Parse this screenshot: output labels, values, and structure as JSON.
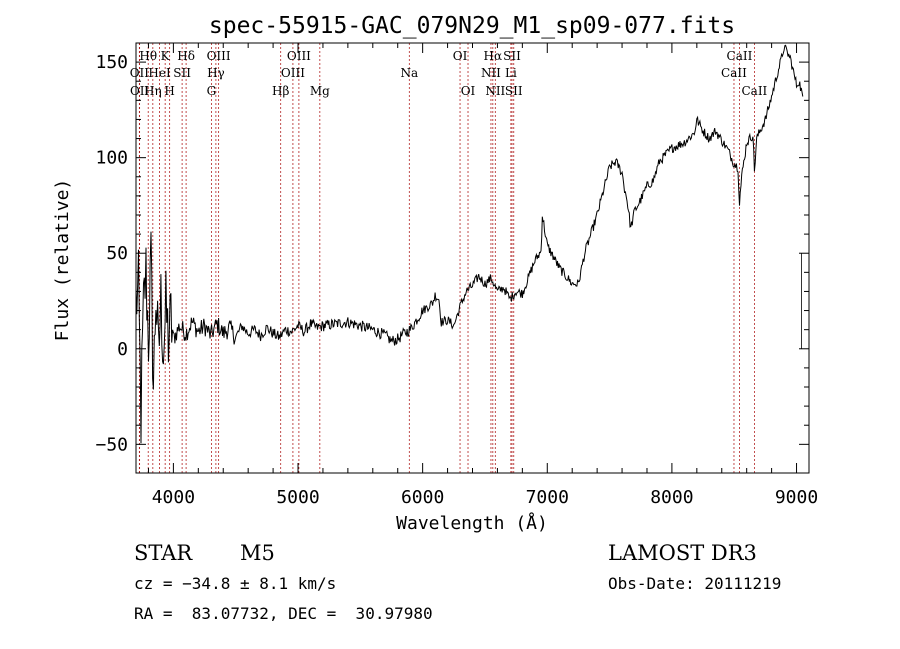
{
  "chart_data": {
    "type": "line",
    "title": "spec-55915-GAC_079N29_M1_sp09-077.fits",
    "xlabel": "Wavelength (Å)",
    "ylabel": "Flux (relative)",
    "xlim": [
      3700,
      9100
    ],
    "ylim": [
      -65,
      160
    ],
    "x_ticks": [
      4000,
      5000,
      6000,
      7000,
      8000,
      9000
    ],
    "x_tick_labels": [
      "4000",
      "5000",
      "6000",
      "7000",
      "8000",
      "9000"
    ],
    "y_ticks": [
      -50,
      0,
      50,
      100,
      150
    ],
    "y_tick_labels": [
      "−50",
      "0",
      "50",
      "100",
      "150"
    ],
    "series": [
      {
        "name": "flux",
        "points": [
          [
            3700,
            25
          ],
          [
            3720,
            30
          ],
          [
            3740,
            -35
          ],
          [
            3760,
            20
          ],
          [
            3780,
            40
          ],
          [
            3800,
            5
          ],
          [
            3820,
            45
          ],
          [
            3840,
            -20
          ],
          [
            3860,
            30
          ],
          [
            3880,
            -5
          ],
          [
            3900,
            25
          ],
          [
            3920,
            0
          ],
          [
            3940,
            20
          ],
          [
            3960,
            5
          ],
          [
            3980,
            15
          ],
          [
            4000,
            5
          ],
          [
            4050,
            12
          ],
          [
            4100,
            8
          ],
          [
            4150,
            14
          ],
          [
            4200,
            9
          ],
          [
            4250,
            12
          ],
          [
            4300,
            7
          ],
          [
            4350,
            13
          ],
          [
            4400,
            8
          ],
          [
            4450,
            11
          ],
          [
            4500,
            6
          ],
          [
            4550,
            12
          ],
          [
            4600,
            8
          ],
          [
            4650,
            10
          ],
          [
            4700,
            7
          ],
          [
            4750,
            11
          ],
          [
            4800,
            8
          ],
          [
            4850,
            6
          ],
          [
            4900,
            10
          ],
          [
            4950,
            9
          ],
          [
            5000,
            12
          ],
          [
            5050,
            9
          ],
          [
            5100,
            13
          ],
          [
            5150,
            11
          ],
          [
            5200,
            12
          ],
          [
            5300,
            13
          ],
          [
            5400,
            14
          ],
          [
            5500,
            12
          ],
          [
            5600,
            10
          ],
          [
            5700,
            7
          ],
          [
            5750,
            4
          ],
          [
            5800,
            5
          ],
          [
            5850,
            8
          ],
          [
            5900,
            10
          ],
          [
            6000,
            20
          ],
          [
            6080,
            24
          ],
          [
            6100,
            28
          ],
          [
            6130,
            26
          ],
          [
            6150,
            14
          ],
          [
            6200,
            15
          ],
          [
            6250,
            12
          ],
          [
            6300,
            22
          ],
          [
            6350,
            30
          ],
          [
            6400,
            33
          ],
          [
            6450,
            38
          ],
          [
            6500,
            34
          ],
          [
            6550,
            37
          ],
          [
            6600,
            30
          ],
          [
            6650,
            32
          ],
          [
            6700,
            26
          ],
          [
            6750,
            30
          ],
          [
            6800,
            29
          ],
          [
            6900,
            46
          ],
          [
            6950,
            51
          ],
          [
            6960,
            70
          ],
          [
            6990,
            58
          ],
          [
            7000,
            54
          ],
          [
            7100,
            42
          ],
          [
            7200,
            34
          ],
          [
            7250,
            34
          ],
          [
            7300,
            50
          ],
          [
            7400,
            70
          ],
          [
            7500,
            95
          ],
          [
            7550,
            98
          ],
          [
            7600,
            92
          ],
          [
            7620,
            84
          ],
          [
            7640,
            78
          ],
          [
            7670,
            63
          ],
          [
            7700,
            72
          ],
          [
            7750,
            78
          ],
          [
            7800,
            85
          ],
          [
            7850,
            88
          ],
          [
            7900,
            98
          ],
          [
            8000,
            105
          ],
          [
            8100,
            108
          ],
          [
            8180,
            113
          ],
          [
            8200,
            120
          ],
          [
            8250,
            114
          ],
          [
            8300,
            110
          ],
          [
            8350,
            114
          ],
          [
            8400,
            109
          ],
          [
            8450,
            104
          ],
          [
            8498,
            97
          ],
          [
            8530,
            95
          ],
          [
            8542,
            77
          ],
          [
            8560,
            90
          ],
          [
            8600,
            108
          ],
          [
            8650,
            112
          ],
          [
            8662,
            93
          ],
          [
            8680,
            110
          ],
          [
            8750,
            120
          ],
          [
            8800,
            132
          ],
          [
            8850,
            145
          ],
          [
            8880,
            152
          ],
          [
            8900,
            158
          ],
          [
            8950,
            152
          ],
          [
            9000,
            138
          ],
          [
            9020,
            140
          ],
          [
            9050,
            132
          ]
        ]
      }
    ],
    "lines": [
      {
        "label": "Hθ",
        "x": 3798,
        "row": 0
      },
      {
        "label": "OII",
        "x": 3727,
        "row": 1
      },
      {
        "label": "OII",
        "x": 3729,
        "row": 2
      },
      {
        "label": "Hη",
        "x": 3835,
        "row": 2
      },
      {
        "label": "HeI",
        "x": 3889,
        "row": 1
      },
      {
        "label": "H",
        "x": 3970,
        "row": 2
      },
      {
        "label": "K",
        "x": 3934,
        "row": 0
      },
      {
        "label": "SII",
        "x": 4070,
        "row": 1
      },
      {
        "label": "Hδ",
        "x": 4102,
        "row": 0
      },
      {
        "label": "G",
        "x": 4305,
        "row": 2
      },
      {
        "label": "Hγ",
        "x": 4341,
        "row": 1
      },
      {
        "label": "OIII",
        "x": 4363,
        "row": 0
      },
      {
        "label": "Hβ",
        "x": 4861,
        "row": 2
      },
      {
        "label": "OIII",
        "x": 4959,
        "row": 1
      },
      {
        "label": "OIII",
        "x": 5007,
        "row": 0
      },
      {
        "label": "Mg",
        "x": 5175,
        "row": 2
      },
      {
        "label": "Na",
        "x": 5893,
        "row": 1
      },
      {
        "label": "OI",
        "x": 6300,
        "row": 0
      },
      {
        "label": "OI",
        "x": 6364,
        "row": 2
      },
      {
        "label": "NII",
        "x": 6548,
        "row": 1
      },
      {
        "label": "Hα",
        "x": 6563,
        "row": 0
      },
      {
        "label": "NII",
        "x": 6583,
        "row": 2
      },
      {
        "label": "Li",
        "x": 6708,
        "row": 1
      },
      {
        "label": "SII",
        "x": 6717,
        "row": 0
      },
      {
        "label": "SII",
        "x": 6731,
        "row": 2
      },
      {
        "label": "CaII",
        "x": 8498,
        "row": 1
      },
      {
        "label": "CaII",
        "x": 8542,
        "row": 0
      },
      {
        "label": "CaII",
        "x": 8662,
        "row": 2
      }
    ]
  },
  "info": {
    "object_type": "STAR",
    "subclass": "M5",
    "survey": "LAMOST DR3",
    "cz": "cz = −34.8 ± 8.1 km/s",
    "obs_date": "Obs-Date: 20111219",
    "coords": "RA =  83.07732, DEC =  30.97980"
  },
  "colors": {
    "line_marker": "#b22222",
    "axis": "#000000",
    "spectrum": "#000000"
  }
}
